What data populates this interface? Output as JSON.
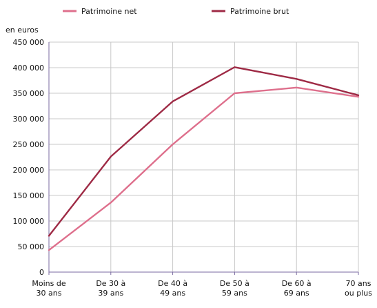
{
  "chart_data": {
    "type": "line",
    "unit_label": "en euros",
    "categories": [
      [
        "Moins de",
        "30 ans"
      ],
      [
        "De 30 à",
        "39 ans"
      ],
      [
        "De 40 à",
        "49 ans"
      ],
      [
        "De 50 à",
        "59 ans"
      ],
      [
        "De 60 à",
        "69 ans"
      ],
      [
        "70 ans",
        "ou plus"
      ]
    ],
    "ylim": [
      0,
      450000
    ],
    "yticks": [
      0,
      50000,
      100000,
      150000,
      200000,
      250000,
      300000,
      350000,
      400000,
      450000
    ],
    "ytick_labels": [
      "0",
      "50 000",
      "100 000",
      "150 000",
      "200 000",
      "250 000",
      "300 000",
      "350 000",
      "400 000",
      "450 000"
    ],
    "grid": true,
    "legend_position": "top",
    "series": [
      {
        "name": "Patrimoine net",
        "color": "#de6f8c",
        "values": [
          43000,
          136000,
          250000,
          350000,
          361000,
          343000
        ]
      },
      {
        "name": "Patrimoine brut",
        "color": "#9e2a45",
        "values": [
          71000,
          226000,
          334000,
          401000,
          378000,
          346000
        ]
      }
    ]
  }
}
